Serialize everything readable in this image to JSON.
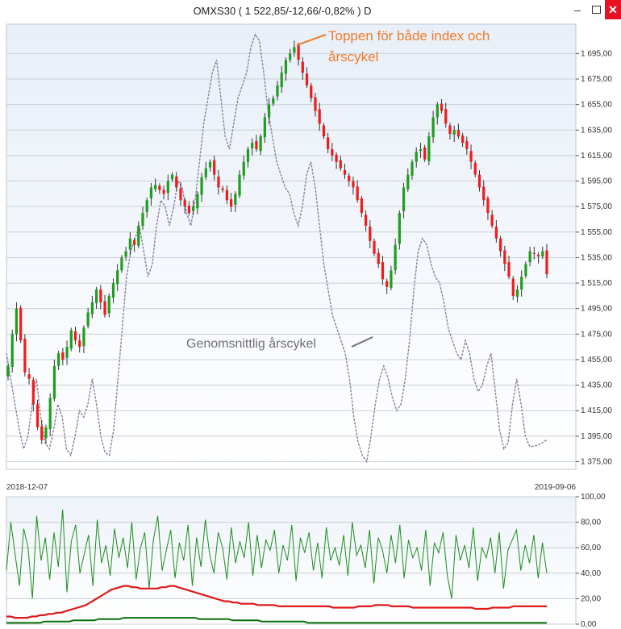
{
  "window": {
    "title": "OMXS30 ( 1 522,85/-12,66/-0,82% )  D",
    "minimize_glyph": "–",
    "close_glyph": "✕"
  },
  "colors": {
    "up_candle": "#1f9e1f",
    "down_candle": "#f01c1c",
    "wick": "#333333",
    "cycle_line": "#8a7f9c",
    "top_annotation": "#f07c2a",
    "avg_annotation": "#707070",
    "osc_green": "#1e8c1e",
    "osc_red": "#e01818",
    "osc_darkgreen": "#0a6e0a",
    "panel_bg_top": "#e9f0f8",
    "panel_bg_bottom": "#ffffff"
  },
  "chart_data": [
    {
      "type": "candlestick",
      "title": "OMXS30 ( 1 522,85/-12,66/-0,82% )  D",
      "x_start_label": "2018-12-07",
      "x_end_label": "2019-09-06",
      "ylim": [
        1369,
        1718
      ],
      "y_ticks": [
        "1 375,00",
        "1 395,00",
        "1 415,00",
        "1 435,00",
        "1 455,00",
        "1 475,00",
        "1 495,00",
        "1 515,00",
        "1 535,00",
        "1 555,00",
        "1 575,00",
        "1 595,00",
        "1 615,00",
        "1 635,00",
        "1 655,00",
        "1 675,00",
        "1 695,00"
      ],
      "y_tick_values": [
        1375,
        1395,
        1415,
        1435,
        1455,
        1475,
        1495,
        1515,
        1535,
        1555,
        1575,
        1595,
        1615,
        1635,
        1655,
        1675,
        1695
      ],
      "grid": true,
      "closes": [
        1450,
        1475,
        1495,
        1470,
        1445,
        1440,
        1420,
        1402,
        1392,
        1402,
        1425,
        1450,
        1460,
        1455,
        1465,
        1478,
        1470,
        1465,
        1480,
        1492,
        1500,
        1510,
        1500,
        1490,
        1505,
        1515,
        1525,
        1535,
        1540,
        1550,
        1545,
        1560,
        1570,
        1580,
        1590,
        1592,
        1588,
        1585,
        1595,
        1600,
        1590,
        1580,
        1575,
        1570,
        1575,
        1585,
        1598,
        1605,
        1610,
        1600,
        1590,
        1588,
        1580,
        1575,
        1585,
        1600,
        1610,
        1620,
        1625,
        1620,
        1630,
        1645,
        1655,
        1660,
        1670,
        1680,
        1690,
        1695,
        1700,
        1690,
        1680,
        1670,
        1660,
        1650,
        1640,
        1630,
        1620,
        1615,
        1610,
        1605,
        1600,
        1595,
        1590,
        1580,
        1570,
        1560,
        1548,
        1538,
        1530,
        1518,
        1512,
        1525,
        1545,
        1570,
        1590,
        1600,
        1610,
        1618,
        1620,
        1612,
        1630,
        1645,
        1655,
        1650,
        1640,
        1632,
        1635,
        1630,
        1625,
        1620,
        1610,
        1600,
        1590,
        1580,
        1570,
        1560,
        1550,
        1540,
        1530,
        1520,
        1505,
        1510,
        1520,
        1530,
        1540,
        1538,
        1536,
        1540,
        1522
      ],
      "cycle_series": {
        "name": "Genomsnittlig årscykel",
        "values": [
          1460,
          1440,
          1420,
          1400,
          1385,
          1395,
          1420,
          1440,
          1410,
          1390,
          1385,
          1400,
          1420,
          1410,
          1385,
          1380,
          1395,
          1415,
          1410,
          1420,
          1440,
          1420,
          1395,
          1382,
          1380,
          1400,
          1440,
          1480,
          1520,
          1540,
          1550,
          1560,
          1540,
          1520,
          1530,
          1560,
          1580,
          1575,
          1560,
          1575,
          1595,
          1590,
          1570,
          1560,
          1580,
          1610,
          1640,
          1660,
          1680,
          1690,
          1660,
          1630,
          1620,
          1640,
          1660,
          1670,
          1680,
          1700,
          1710,
          1705,
          1680,
          1650,
          1630,
          1610,
          1600,
          1590,
          1585,
          1570,
          1560,
          1575,
          1600,
          1610,
          1590,
          1560,
          1530,
          1510,
          1490,
          1480,
          1470,
          1460,
          1440,
          1410,
          1390,
          1380,
          1375,
          1395,
          1420,
          1440,
          1450,
          1440,
          1425,
          1415,
          1420,
          1440,
          1470,
          1510,
          1540,
          1550,
          1545,
          1530,
          1520,
          1515,
          1500,
          1480,
          1470,
          1460,
          1455,
          1470,
          1460,
          1440,
          1430,
          1435,
          1450,
          1460,
          1430,
          1400,
          1385,
          1390,
          1420,
          1440,
          1420,
          1395,
          1387,
          1387,
          1388,
          1390,
          1392
        ]
      }
    },
    {
      "type": "line",
      "ylim": [
        0,
        100
      ],
      "y_ticks": [
        "0,00",
        "20,00",
        "40,00",
        "60,00",
        "80,00",
        "100,00"
      ],
      "y_tick_values": [
        0,
        20,
        40,
        60,
        80,
        100
      ],
      "series": [
        {
          "values": [
            42,
            80,
            55,
            30,
            75,
            60,
            20,
            85,
            50,
            68,
            35,
            72,
            45,
            90,
            25,
            65,
            78,
            40,
            55,
            70,
            30,
            82,
            48,
            62,
            38,
            75,
            52,
            68,
            44,
            80,
            35,
            60,
            72,
            28,
            66,
            85,
            42,
            58,
            74,
            36,
            64,
            50,
            78,
            30,
            68,
            45,
            82,
            55,
            40,
            72,
            60,
            35,
            76,
            48,
            65,
            52,
            80,
            38,
            70,
            44,
            66,
            58,
            74,
            40,
            62,
            50,
            78,
            34,
            68,
            56,
            72,
            42,
            64,
            36,
            76,
            50,
            60,
            46,
            70,
            38,
            80,
            54,
            62,
            44,
            74,
            32,
            68,
            58,
            40,
            70,
            48,
            78,
            36,
            66,
            52,
            60,
            42,
            74,
            30,
            64,
            56,
            72,
            38,
            20,
            70,
            50,
            62,
            44,
            76,
            34,
            60,
            52,
            68,
            40,
            72,
            28,
            58,
            66,
            74,
            42,
            62,
            48,
            70,
            36,
            64,
            40
          ],
          "peak_series": true
        },
        {
          "values": [
            6,
            6,
            5,
            5,
            5,
            5,
            6,
            6,
            7,
            7,
            8,
            8,
            9,
            9,
            10,
            11,
            12,
            13,
            14,
            15,
            17,
            19,
            21,
            23,
            25,
            27,
            28,
            29,
            30,
            30,
            29,
            29,
            28,
            28,
            28,
            28,
            28,
            29,
            29,
            30,
            30,
            29,
            28,
            27,
            26,
            25,
            24,
            23,
            22,
            21,
            20,
            19,
            18,
            18,
            17,
            17,
            16,
            16,
            16,
            16,
            15,
            15,
            15,
            15,
            15,
            14,
            14,
            14,
            14,
            14,
            14,
            14,
            14,
            14,
            14,
            14,
            14,
            14,
            13,
            13,
            13,
            13,
            13,
            13,
            14,
            14,
            14,
            14,
            15,
            15,
            15,
            15,
            14,
            14,
            14,
            14,
            14,
            13,
            13,
            13,
            13,
            13,
            13,
            13,
            13,
            13,
            13,
            13,
            13,
            13,
            13,
            13,
            12,
            12,
            12,
            12,
            13,
            13,
            13,
            13,
            13,
            14,
            14,
            14,
            14,
            14,
            14,
            14,
            14,
            14
          ]
        },
        {
          "values": [
            1,
            1,
            1,
            1,
            1,
            1,
            1,
            1,
            1,
            2,
            2,
            2,
            2,
            2,
            2,
            2,
            3,
            3,
            3,
            3,
            3,
            3,
            4,
            4,
            4,
            4,
            4,
            4,
            5,
            5,
            5,
            5,
            5,
            5,
            5,
            5,
            5,
            5,
            5,
            5,
            5,
            5,
            5,
            5,
            5,
            5,
            4,
            4,
            4,
            4,
            4,
            4,
            4,
            4,
            3,
            3,
            3,
            3,
            3,
            3,
            3,
            2,
            2,
            2,
            2,
            2,
            2,
            2,
            2,
            2,
            2,
            2,
            1,
            1,
            1,
            1,
            1,
            1,
            1,
            1,
            1,
            1,
            1,
            1,
            1,
            1,
            1,
            1,
            1,
            1,
            1,
            1,
            1,
            1,
            1,
            1,
            1,
            1,
            1,
            1,
            1,
            1,
            1,
            1,
            1,
            1,
            1,
            1,
            1,
            1,
            1,
            1,
            1,
            1,
            1,
            1,
            1,
            1,
            1,
            1,
            1,
            1,
            1,
            1,
            1,
            1,
            1,
            1,
            1,
            1
          ]
        }
      ]
    }
  ],
  "annotations": {
    "top_line1": "Toppen för både index och",
    "top_line2": "årscykel",
    "avg_label": "Genomsnittlig årscykel"
  }
}
